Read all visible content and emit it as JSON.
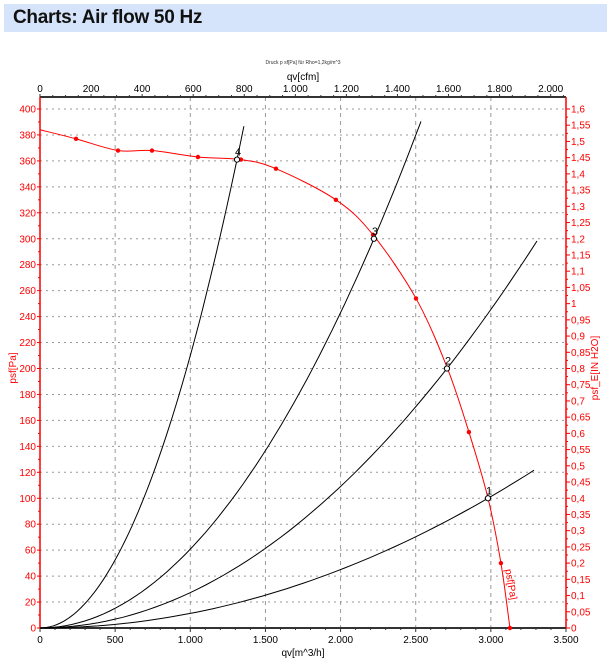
{
  "header": {
    "title": "Charts: Air flow 50 Hz"
  },
  "chart_data": {
    "type": "line",
    "title": "Druck p sf[Pa] für Rho=1,2kg/m^3",
    "xlabel": "qv[m^3/h]",
    "x2label": "qv[cfm]",
    "ylabel": "psf[Pa]",
    "y2label": "psf_E[IN H2O]",
    "xlim": [
      0,
      3500
    ],
    "x2lim": [
      0,
      2060
    ],
    "ylim": [
      0,
      400
    ],
    "y2lim": [
      0,
      1.6
    ],
    "x_ticks": [
      "0",
      "500",
      "1.000",
      "1.500",
      "2.000",
      "2.500",
      "3.000",
      "3.500"
    ],
    "x2_ticks": [
      "0",
      "200",
      "400",
      "600",
      "800",
      "1.000",
      "1.200",
      "1.400",
      "1.600",
      "1.800",
      "2.000"
    ],
    "y_ticks": [
      "0",
      "20",
      "40",
      "60",
      "80",
      "100",
      "120",
      "140",
      "160",
      "180",
      "200",
      "220",
      "240",
      "260",
      "280",
      "300",
      "320",
      "340",
      "360",
      "380",
      "400"
    ],
    "y2_ticks": [
      "0",
      "0,05",
      "0,1",
      "0,15",
      "0,2",
      "0,25",
      "0,3",
      "0,35",
      "0,4",
      "0,45",
      "0,5",
      "0,55",
      "0,6",
      "0,65",
      "0,7",
      "0,75",
      "0,8",
      "0,85",
      "0,9",
      "0,95",
      "1",
      "1,05",
      "1,1",
      "1,15",
      "1,2",
      "1,25",
      "1,3",
      "1,35",
      "1,4",
      "1,45",
      "1,5",
      "1,55",
      "1,6"
    ],
    "grid": true,
    "fan_curve": {
      "label": "psf[Pa]",
      "color": "#ff0000",
      "x": [
        0,
        240,
        519,
        745,
        1051,
        1337,
        1570,
        1969,
        2216,
        2502,
        2708,
        2854,
        2981,
        3067,
        3127
      ],
      "y": [
        384,
        377,
        368,
        368,
        363,
        361,
        354,
        330,
        303,
        254,
        201,
        151,
        100,
        50,
        0
      ],
      "markers": [
        240,
        519,
        745,
        1051,
        1337,
        1570,
        1969,
        2216,
        2502,
        2854,
        3067,
        3127
      ]
    },
    "system_curves": [
      {
        "label": "1",
        "op_x": 2981,
        "op_y": 100,
        "x_max": 3287,
        "color": "#000000"
      },
      {
        "label": "2",
        "op_x": 2708,
        "op_y": 200,
        "x_max": 3307,
        "color": "#000000"
      },
      {
        "label": "3",
        "op_x": 2222,
        "op_y": 300,
        "x_max": 2535,
        "color": "#000000"
      },
      {
        "label": "4",
        "op_x": 1311,
        "op_y": 361,
        "x_max": 1357,
        "color": "#000000"
      }
    ]
  }
}
